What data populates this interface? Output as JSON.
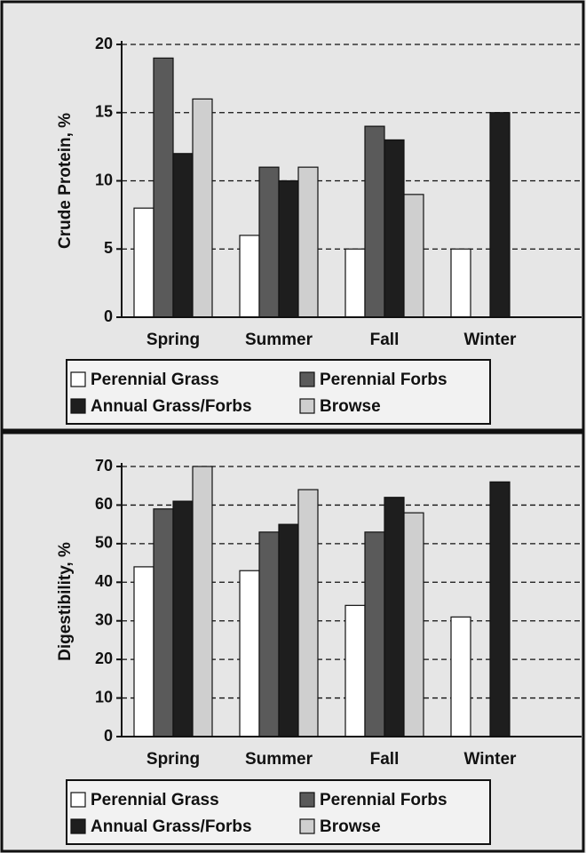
{
  "chart_data": [
    {
      "type": "bar",
      "ylabel": "Crude Protein, %",
      "categories": [
        "Spring",
        "Summer",
        "Fall",
        "Winter"
      ],
      "series": [
        {
          "name": "Perennial Grass",
          "color": "#ffffff",
          "values": [
            8,
            6,
            5,
            5
          ]
        },
        {
          "name": "Perennial Forbs",
          "color": "#5a5a5a",
          "values": [
            19,
            11,
            14,
            null
          ]
        },
        {
          "name": "Annual Grass/Forbs",
          "color": "#1e1e1e",
          "values": [
            12,
            10,
            13,
            15
          ]
        },
        {
          "name": "Browse",
          "color": "#cfcfcf",
          "values": [
            16,
            11,
            9,
            null
          ]
        }
      ],
      "ylim": [
        0,
        20
      ],
      "yticks": [
        0,
        5,
        10,
        15,
        20
      ],
      "grid": true,
      "legend": "bottom"
    },
    {
      "type": "bar",
      "ylabel": "Digestibility, %",
      "categories": [
        "Spring",
        "Summer",
        "Fall",
        "Winter"
      ],
      "series": [
        {
          "name": "Perennial Grass",
          "color": "#ffffff",
          "values": [
            44,
            43,
            34,
            31
          ]
        },
        {
          "name": "Perennial Forbs",
          "color": "#5a5a5a",
          "values": [
            59,
            53,
            53,
            null
          ]
        },
        {
          "name": "Annual Grass/Forbs",
          "color": "#1e1e1e",
          "values": [
            61,
            55,
            62,
            66
          ]
        },
        {
          "name": "Browse",
          "color": "#cfcfcf",
          "values": [
            70,
            64,
            58,
            null
          ]
        }
      ],
      "ylim": [
        0,
        70
      ],
      "yticks": [
        0,
        10,
        20,
        30,
        40,
        50,
        60,
        70
      ],
      "grid": true,
      "legend": "bottom"
    }
  ]
}
